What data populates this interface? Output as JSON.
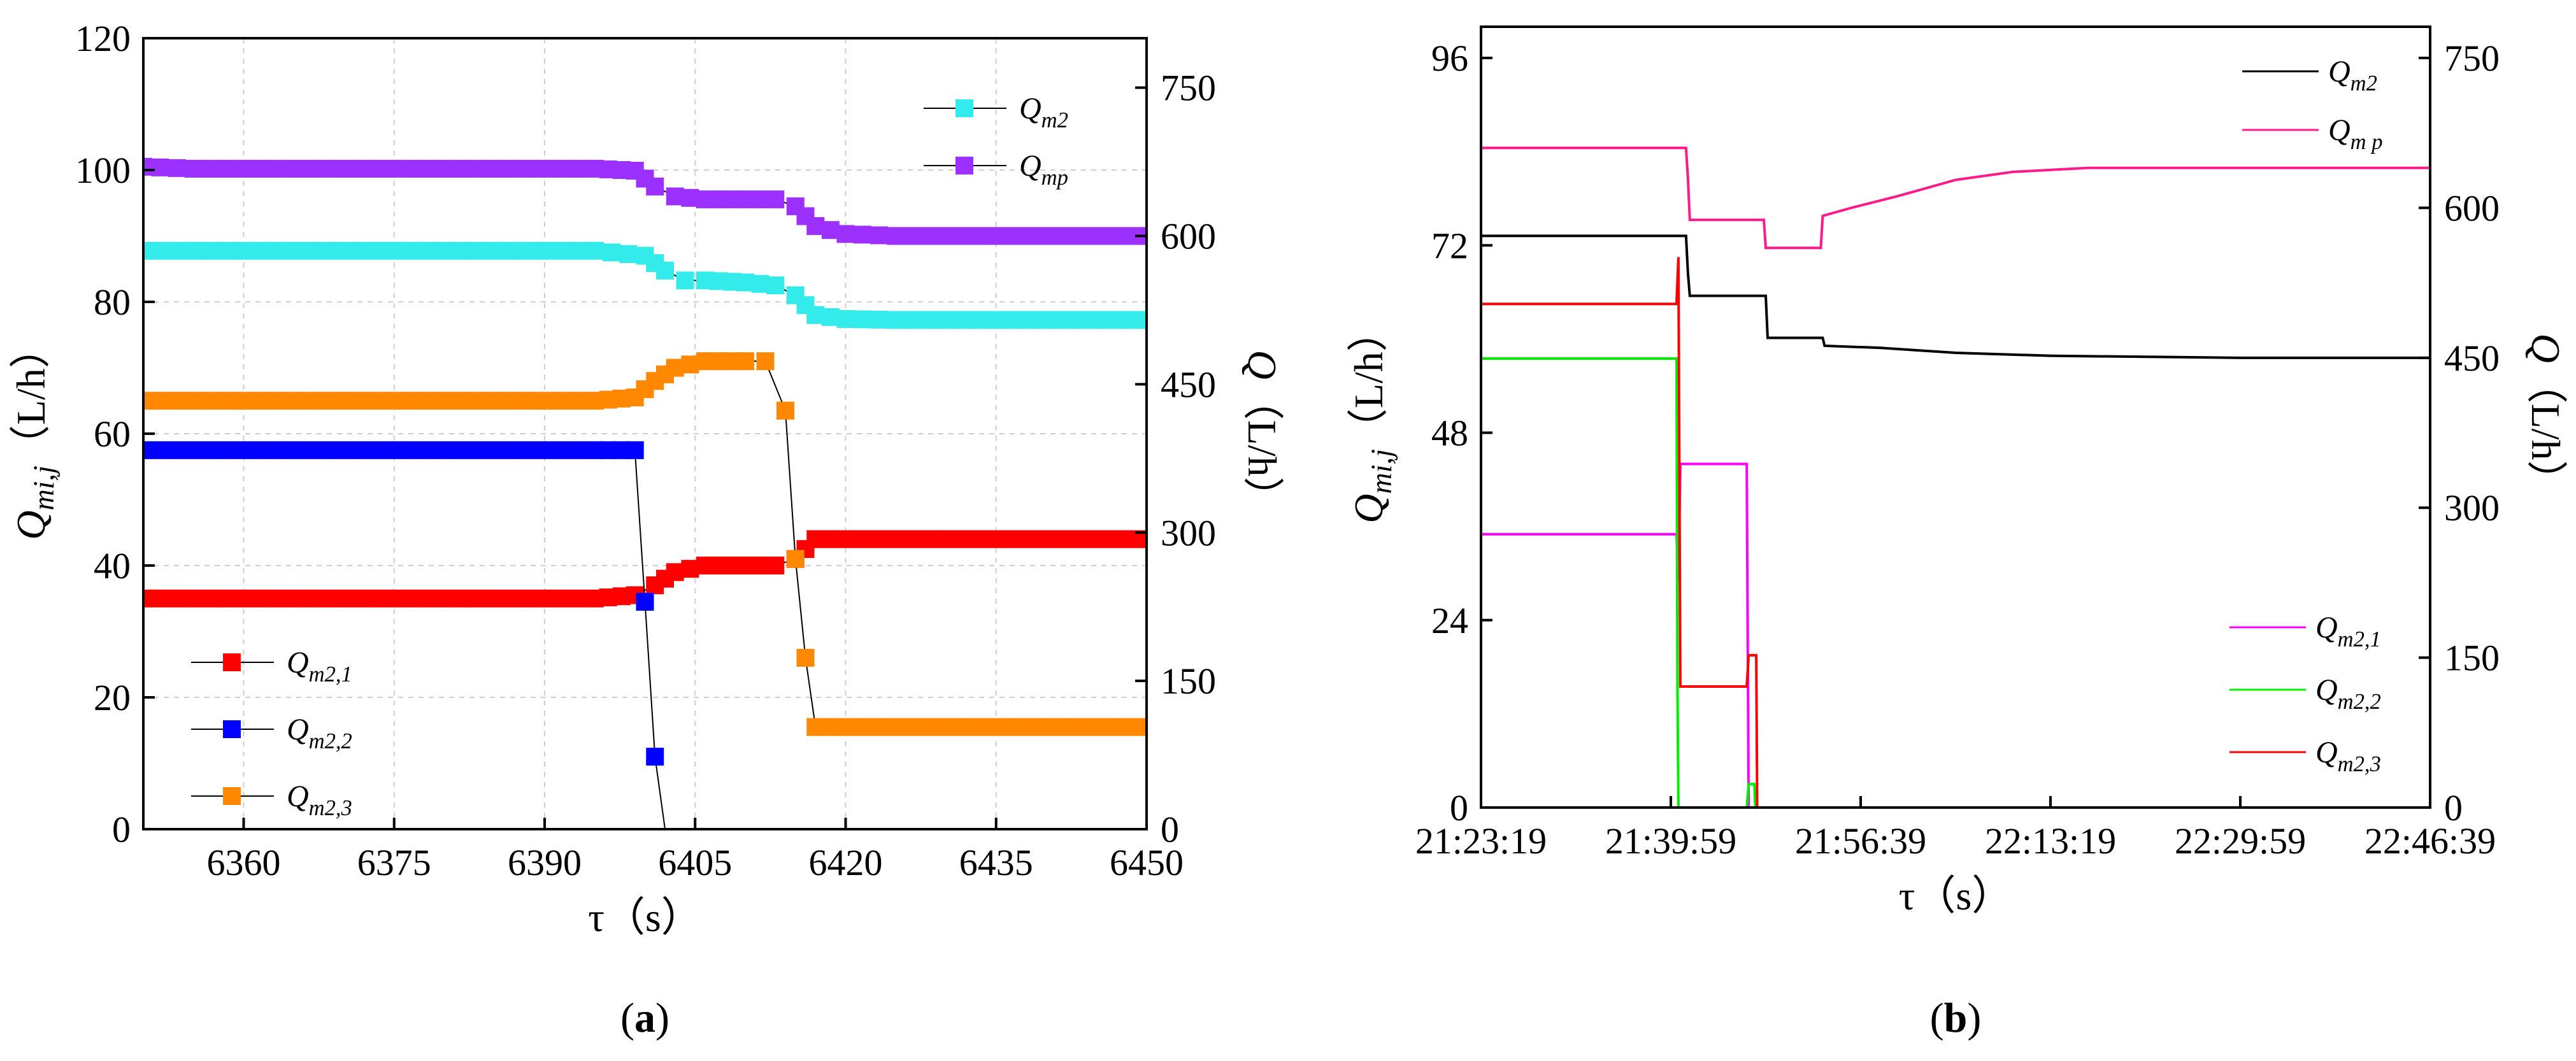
{
  "chart_data": [
    {
      "panel": "(a)",
      "panel_letter": "a",
      "type": "scatter",
      "xlabel": "τ（s）",
      "ylabel_left": "Q_mi,j（L/h）",
      "ylabel_left_main": "Q",
      "ylabel_left_sub": "mi,j",
      "ylabel_left_unit": "（L/h）",
      "ylabel_right": "Q（L/h）",
      "ylabel_right_main": "Q",
      "ylabel_right_unit": "（L/h）",
      "xlim": [
        6350,
        6450
      ],
      "ylim_left": [
        0,
        120
      ],
      "ylim_right": [
        0,
        800
      ],
      "xticks": [
        6360,
        6375,
        6390,
        6405,
        6420,
        6435,
        6450
      ],
      "yticks_left": [
        0,
        20,
        40,
        60,
        80,
        100,
        120
      ],
      "yticks_right": [
        0,
        150,
        300,
        450,
        600,
        750
      ],
      "grid": true,
      "legend_right_axis": [
        "Q_m2",
        "Q_mp"
      ],
      "legend_left_axis": [
        "Q_m2,1",
        "Q_m2,2",
        "Q_m2,3"
      ],
      "series": [
        {
          "name": "Q_m2",
          "legend_main": "Q",
          "legend_sub": "m2",
          "axis": "right",
          "color": "#33ebeb",
          "points": [
            [
              6350,
              585
            ],
            [
              6355,
              585
            ],
            [
              6360,
              585
            ],
            [
              6365,
              585
            ],
            [
              6370,
              585
            ],
            [
              6375,
              585
            ],
            [
              6380,
              585
            ],
            [
              6385,
              585
            ],
            [
              6390,
              585
            ],
            [
              6395,
              585
            ],
            [
              6400,
              580
            ],
            [
              6402,
              565
            ],
            [
              6404,
              555
            ],
            [
              6406,
              555
            ],
            [
              6410,
              553
            ],
            [
              6413,
              550
            ],
            [
              6415,
              540
            ],
            [
              6417,
              520
            ],
            [
              6420,
              516
            ],
            [
              6425,
              515
            ],
            [
              6430,
              515
            ],
            [
              6435,
              515
            ],
            [
              6440,
              515
            ],
            [
              6445,
              515
            ],
            [
              6450,
              515
            ]
          ]
        },
        {
          "name": "Q_mp",
          "legend_main": "Q",
          "legend_sub": "mp",
          "axis": "right",
          "color": "#9b30ff",
          "points": [
            [
              6350,
              670
            ],
            [
              6355,
              668
            ],
            [
              6360,
              668
            ],
            [
              6365,
              668
            ],
            [
              6370,
              668
            ],
            [
              6375,
              668
            ],
            [
              6380,
              668
            ],
            [
              6385,
              668
            ],
            [
              6390,
              668
            ],
            [
              6395,
              668
            ],
            [
              6399,
              666
            ],
            [
              6401,
              650
            ],
            [
              6403,
              640
            ],
            [
              6406,
              637
            ],
            [
              6410,
              637
            ],
            [
              6413,
              637
            ],
            [
              6415,
              630
            ],
            [
              6417,
              610
            ],
            [
              6420,
              602
            ],
            [
              6425,
              600
            ],
            [
              6430,
              600
            ],
            [
              6435,
              600
            ],
            [
              6440,
              600
            ],
            [
              6445,
              600
            ],
            [
              6450,
              600
            ]
          ]
        },
        {
          "name": "Q_m2,1",
          "legend_main": "Q",
          "legend_sub": "m2,1",
          "axis": "left",
          "color": "#ff0000",
          "points": [
            [
              6350,
              35
            ],
            [
              6355,
              35
            ],
            [
              6360,
              35
            ],
            [
              6365,
              35
            ],
            [
              6370,
              35
            ],
            [
              6375,
              35
            ],
            [
              6380,
              35
            ],
            [
              6385,
              35
            ],
            [
              6390,
              35
            ],
            [
              6395,
              35
            ],
            [
              6399,
              35.5
            ],
            [
              6401,
              37
            ],
            [
              6403,
              39
            ],
            [
              6406,
              40
            ],
            [
              6410,
              40
            ],
            [
              6413,
              40
            ],
            [
              6415,
              41
            ],
            [
              6417,
              44
            ],
            [
              6420,
              44
            ],
            [
              6425,
              44
            ],
            [
              6430,
              44
            ],
            [
              6435,
              44
            ],
            [
              6440,
              44
            ],
            [
              6445,
              44
            ],
            [
              6450,
              44
            ]
          ]
        },
        {
          "name": "Q_m2,2",
          "legend_main": "Q",
          "legend_sub": "m2,2",
          "axis": "left",
          "color": "#0000ff",
          "points": [
            [
              6350,
              57.5
            ],
            [
              6355,
              57.5
            ],
            [
              6360,
              57.5
            ],
            [
              6365,
              57.5
            ],
            [
              6370,
              57.5
            ],
            [
              6375,
              57.5
            ],
            [
              6380,
              57.5
            ],
            [
              6385,
              57.5
            ],
            [
              6390,
              57.5
            ],
            [
              6395,
              57.5
            ],
            [
              6399,
              57.5
            ],
            [
              6400,
              34.5
            ],
            [
              6401,
              11
            ],
            [
              6402,
              0
            ]
          ]
        },
        {
          "name": "Q_m2,3",
          "legend_main": "Q",
          "legend_sub": "m2,3",
          "axis": "left",
          "color": "#ff8800",
          "points": [
            [
              6350,
              65
            ],
            [
              6355,
              65
            ],
            [
              6360,
              65
            ],
            [
              6365,
              65
            ],
            [
              6370,
              65
            ],
            [
              6375,
              65
            ],
            [
              6380,
              65
            ],
            [
              6385,
              65
            ],
            [
              6390,
              65
            ],
            [
              6395,
              65
            ],
            [
              6399,
              65.5
            ],
            [
              6401,
              68
            ],
            [
              6403,
              70
            ],
            [
              6406,
              71
            ],
            [
              6410,
              71
            ],
            [
              6412,
              71
            ],
            [
              6414,
              63.5
            ],
            [
              6415,
              41
            ],
            [
              6416,
              26
            ],
            [
              6417,
              15.5
            ],
            [
              6420,
              15.5
            ],
            [
              6425,
              15.5
            ],
            [
              6430,
              15.5
            ],
            [
              6435,
              15.5
            ],
            [
              6440,
              15.5
            ],
            [
              6445,
              15.5
            ],
            [
              6450,
              15.5
            ]
          ]
        }
      ]
    },
    {
      "panel": "(b)",
      "panel_letter": "b",
      "type": "line",
      "xlabel": "τ（s）",
      "ylabel_left": "Q_mi,j（L/h）",
      "ylabel_left_main": "Q",
      "ylabel_left_sub": "mi,j",
      "ylabel_left_unit": "（L/h）",
      "ylabel_right": "Q（L/h）",
      "ylabel_right_main": "Q",
      "ylabel_right_unit": "（L/h）",
      "xlim": [
        0,
        5000
      ],
      "ylim_left": [
        0,
        100
      ],
      "ylim_right": [
        0,
        781.25
      ],
      "xticks": [
        0,
        1000,
        2000,
        3000,
        4000,
        5000
      ],
      "xticklabels": [
        "21:23:19",
        "21:39:59",
        "21:56:39",
        "22:13:19",
        "22:29:59",
        "22:46:39"
      ],
      "yticks_left": [
        0,
        24,
        48,
        72,
        96
      ],
      "yticks_right": [
        0,
        150,
        300,
        450,
        600,
        750
      ],
      "grid": false,
      "legend_right_axis": [
        "Q_m2",
        "Q_mp"
      ],
      "legend_left_axis": [
        "Q_m2,1",
        "Q_m2,2",
        "Q_m2,3"
      ],
      "series": [
        {
          "name": "Q_m2",
          "legend_main": "Q",
          "legend_sub": "m2",
          "axis": "right",
          "color": "#000000",
          "points": [
            [
              0,
              572
            ],
            [
              1080,
              572
            ],
            [
              1090,
              535
            ],
            [
              1100,
              512
            ],
            [
              1500,
              512
            ],
            [
              1510,
              470
            ],
            [
              1800,
              470
            ],
            [
              1810,
              462
            ],
            [
              2100,
              460
            ],
            [
              2500,
              455
            ],
            [
              3000,
              452
            ],
            [
              4000,
              450
            ],
            [
              5000,
              450
            ]
          ]
        },
        {
          "name": "Q_mp",
          "legend_main": "Q",
          "legend_sub": "m p",
          "axis": "right",
          "color": "#ff1a8c",
          "points": [
            [
              0,
              660
            ],
            [
              1080,
              660
            ],
            [
              1090,
              630
            ],
            [
              1100,
              588
            ],
            [
              1490,
              588
            ],
            [
              1500,
              560
            ],
            [
              1790,
              560
            ],
            [
              1800,
              592
            ],
            [
              1950,
              600
            ],
            [
              2200,
              612
            ],
            [
              2500,
              628
            ],
            [
              2800,
              636
            ],
            [
              3200,
              640
            ],
            [
              4000,
              640
            ],
            [
              5000,
              640
            ]
          ]
        },
        {
          "name": "Q_m2,1",
          "legend_main": "Q",
          "legend_sub": "m2,1",
          "axis": "left",
          "color": "#ff00ff",
          "points": [
            [
              0,
              35
            ],
            [
              1030,
              35
            ],
            [
              1040,
              29
            ],
            [
              1050,
              44
            ],
            [
              1400,
              44
            ],
            [
              1410,
              0
            ],
            [
              5000,
              0
            ]
          ]
        },
        {
          "name": "Q_m2,2",
          "legend_main": "Q",
          "legend_sub": "m2,2",
          "axis": "left",
          "color": "#00ee00",
          "points": [
            [
              0,
              57.5
            ],
            [
              1030,
              57.5
            ],
            [
              1035,
              15
            ],
            [
              1040,
              0
            ],
            [
              1400,
              0
            ],
            [
              1410,
              3
            ],
            [
              1440,
              3
            ],
            [
              1445,
              0
            ],
            [
              5000,
              0
            ]
          ]
        },
        {
          "name": "Q_m2,3",
          "legend_main": "Q",
          "legend_sub": "m2,3",
          "axis": "left",
          "color": "#ff0000",
          "points": [
            [
              0,
              64.5
            ],
            [
              1030,
              64.5
            ],
            [
              1040,
              70.5
            ],
            [
              1050,
              15.5
            ],
            [
              1400,
              15.5
            ],
            [
              1410,
              19.5
            ],
            [
              1450,
              19.5
            ],
            [
              1455,
              0
            ],
            [
              5000,
              0
            ]
          ]
        }
      ]
    }
  ]
}
